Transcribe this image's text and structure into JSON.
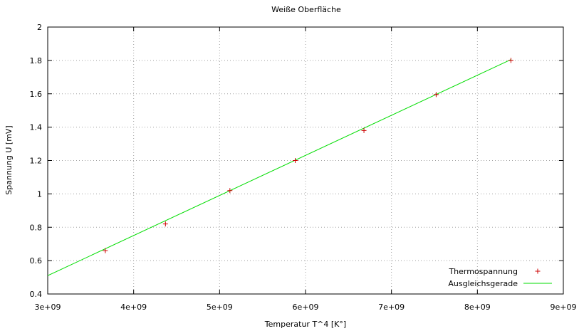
{
  "chart_data": {
    "type": "scatter",
    "title": "Weiße Oberfläche",
    "xlabel": "Temperatur T^4 [K°]",
    "ylabel": "Spannung U [mV]",
    "xlim": [
      3000000000,
      9000000000
    ],
    "ylim": [
      0.4,
      2.0
    ],
    "x_ticks": [
      3000000000,
      4000000000,
      5000000000,
      6000000000,
      7000000000,
      8000000000,
      9000000000
    ],
    "x_tick_labels": [
      "3e+09",
      "4e+09",
      "5e+09",
      "6e+09",
      "7e+09",
      "8e+09",
      "9e+09"
    ],
    "y_ticks": [
      0.4,
      0.6,
      0.8,
      1.0,
      1.2,
      1.4,
      1.6,
      1.8,
      2.0
    ],
    "y_tick_labels": [
      "0.4",
      "0.6",
      "0.8",
      "1",
      "1.2",
      "1.4",
      "1.6",
      "1.8",
      "2"
    ],
    "grid": true,
    "legend_position": "bottom-right",
    "series": [
      {
        "name": "Thermospannung",
        "kind": "points",
        "marker": "plus",
        "color": "#cc0000",
        "x": [
          3670000000,
          4370000000,
          5120000000,
          5880000000,
          6680000000,
          7520000000,
          8390000000
        ],
        "y": [
          0.66,
          0.82,
          1.02,
          1.2,
          1.38,
          1.595,
          1.8
        ]
      },
      {
        "name": "Ausgleichsgerade",
        "kind": "line",
        "color": "#00dd00",
        "x": [
          3000000000,
          8390000000
        ],
        "y": [
          0.51,
          1.805
        ]
      }
    ]
  }
}
